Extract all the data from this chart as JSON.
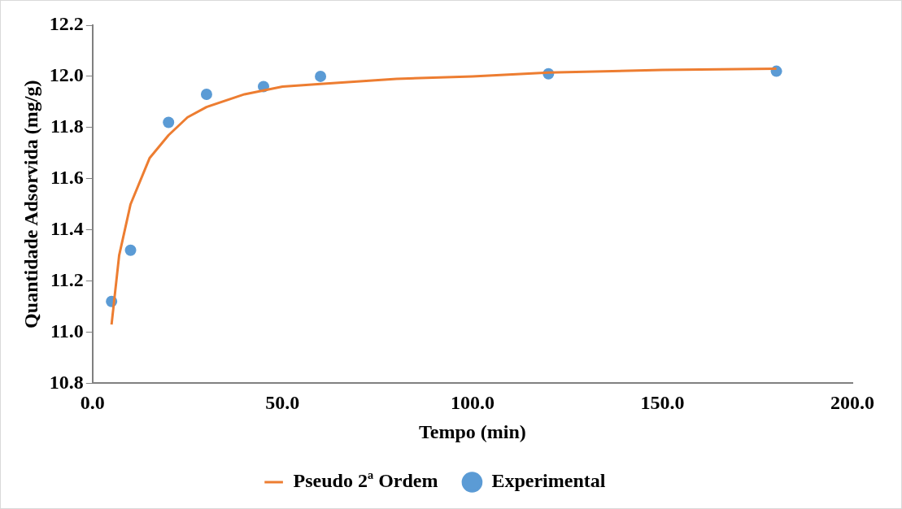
{
  "chart_data": {
    "type": "scatter",
    "xlabel": "Tempo (min)",
    "ylabel": "Quantidade Adsorvida (mg/g)",
    "xlim": [
      0,
      200
    ],
    "xticks": [
      {
        "value": 0,
        "label": "0.0"
      },
      {
        "value": 50,
        "label": "50.0"
      },
      {
        "value": 100,
        "label": "100.0"
      },
      {
        "value": 150,
        "label": "150.0"
      },
      {
        "value": 200,
        "label": "200.0"
      }
    ],
    "ylim": [
      10.8,
      12.2
    ],
    "yticks": [
      {
        "value": 10.8,
        "label": "10.8"
      },
      {
        "value": 11,
        "label": "11.0"
      },
      {
        "value": 11.2,
        "label": "11.2"
      },
      {
        "value": 11.4,
        "label": "11.4"
      },
      {
        "value": 11.6,
        "label": "11.6"
      },
      {
        "value": 11.8,
        "label": "11.8"
      },
      {
        "value": 12,
        "label": "12.0"
      },
      {
        "value": 12.2,
        "label": "12.2"
      }
    ],
    "grid": false,
    "legend": "bottom",
    "series": [
      {
        "name": "Pseudo 2ª Ordem",
        "type": "line",
        "color": "#ed7d31",
        "marker": "none",
        "x": [
          5,
          7,
          10,
          15,
          20,
          25,
          30,
          40,
          50,
          60,
          80,
          100,
          120,
          150,
          180
        ],
        "values": [
          11.03,
          11.3,
          11.5,
          11.68,
          11.77,
          11.84,
          11.88,
          11.93,
          11.96,
          11.97,
          11.99,
          12.0,
          12.015,
          12.025,
          12.03
        ]
      },
      {
        "name": "Experimental",
        "type": "scatter",
        "color": "#5b9bd5",
        "marker": "circle",
        "x": [
          5,
          10,
          20,
          30,
          45,
          60,
          120,
          180
        ],
        "values": [
          11.12,
          11.32,
          11.82,
          11.93,
          11.96,
          12.0,
          12.01,
          12.02
        ]
      }
    ]
  }
}
